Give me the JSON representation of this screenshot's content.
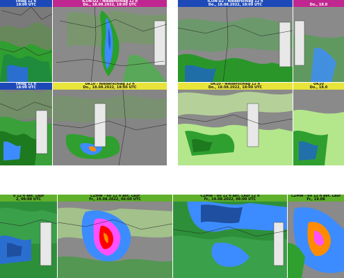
{
  "panels": {
    "tl_a": {
      "line1": "chlag 12 h",
      "line2": "18:00 UTC"
    },
    "tl_b": {
      "line1": "ICON-D2 - Niederschlag 12 h",
      "line2": "Do., 18.08.2022, 18:00 UTC"
    },
    "tl_c": {
      "line1": "chlag 12 h",
      "line2": "18:00 UTC"
    },
    "tl_d": {
      "line1": "UK10 - Niederschlag 12 h",
      "line2": "Do., 18.08.2022, 18:00 UTC"
    },
    "tr_a": {
      "line1": "ICON-D2 - Niederschlag 12 h",
      "line2": "Do., 18.08.2022, 18:00 UTC"
    },
    "tr_b": {
      "line1": "",
      "line2": "Do., 18.0"
    },
    "tr_c": {
      "line1": "UK10 - Niederschlag 12 h",
      "line2": "Do., 18.08.2022, 18:00 UTC"
    },
    "tr_d": {
      "line1": "UK10",
      "line2": "Do., 18.0"
    },
    "b_a": {
      "line1": "0 12 h akt. Lauf",
      "line2": "2, 06:00 UTC"
    },
    "b_b": {
      "line1": "CZMW - 60 12 h akt. Lauf",
      "line2": "Fr., 19.08.2022, 06:00 UTC"
    },
    "b_c": {
      "line1": "CZMW - 60 12 h akt. Lauf 12 h",
      "line2": "Fr., 19.08.2022, 06:00 UTC"
    },
    "b_d": {
      "line1": "CZMW - 60 12 h akt. Lauf",
      "line2": "Fr., 19.08"
    }
  },
  "colors": {
    "header_blue": "#1d49b8",
    "header_magenta": "#c0268f",
    "header_yellow": "#e8e43a",
    "header_green": "#5fb02a",
    "legend_scale": [
      "#ffffff",
      "#e6e6e6",
      "#c8f0c8",
      "#96e696",
      "#50c850",
      "#1e961e",
      "#0a6e0a",
      "#1e64c8",
      "#3c8cff",
      "#78b4ff",
      "#b4c8ff",
      "#ff96ff",
      "#ff50ff",
      "#c800c8",
      "#ff0000",
      "#ff8c00",
      "#ffd200",
      "#ffff00"
    ]
  }
}
